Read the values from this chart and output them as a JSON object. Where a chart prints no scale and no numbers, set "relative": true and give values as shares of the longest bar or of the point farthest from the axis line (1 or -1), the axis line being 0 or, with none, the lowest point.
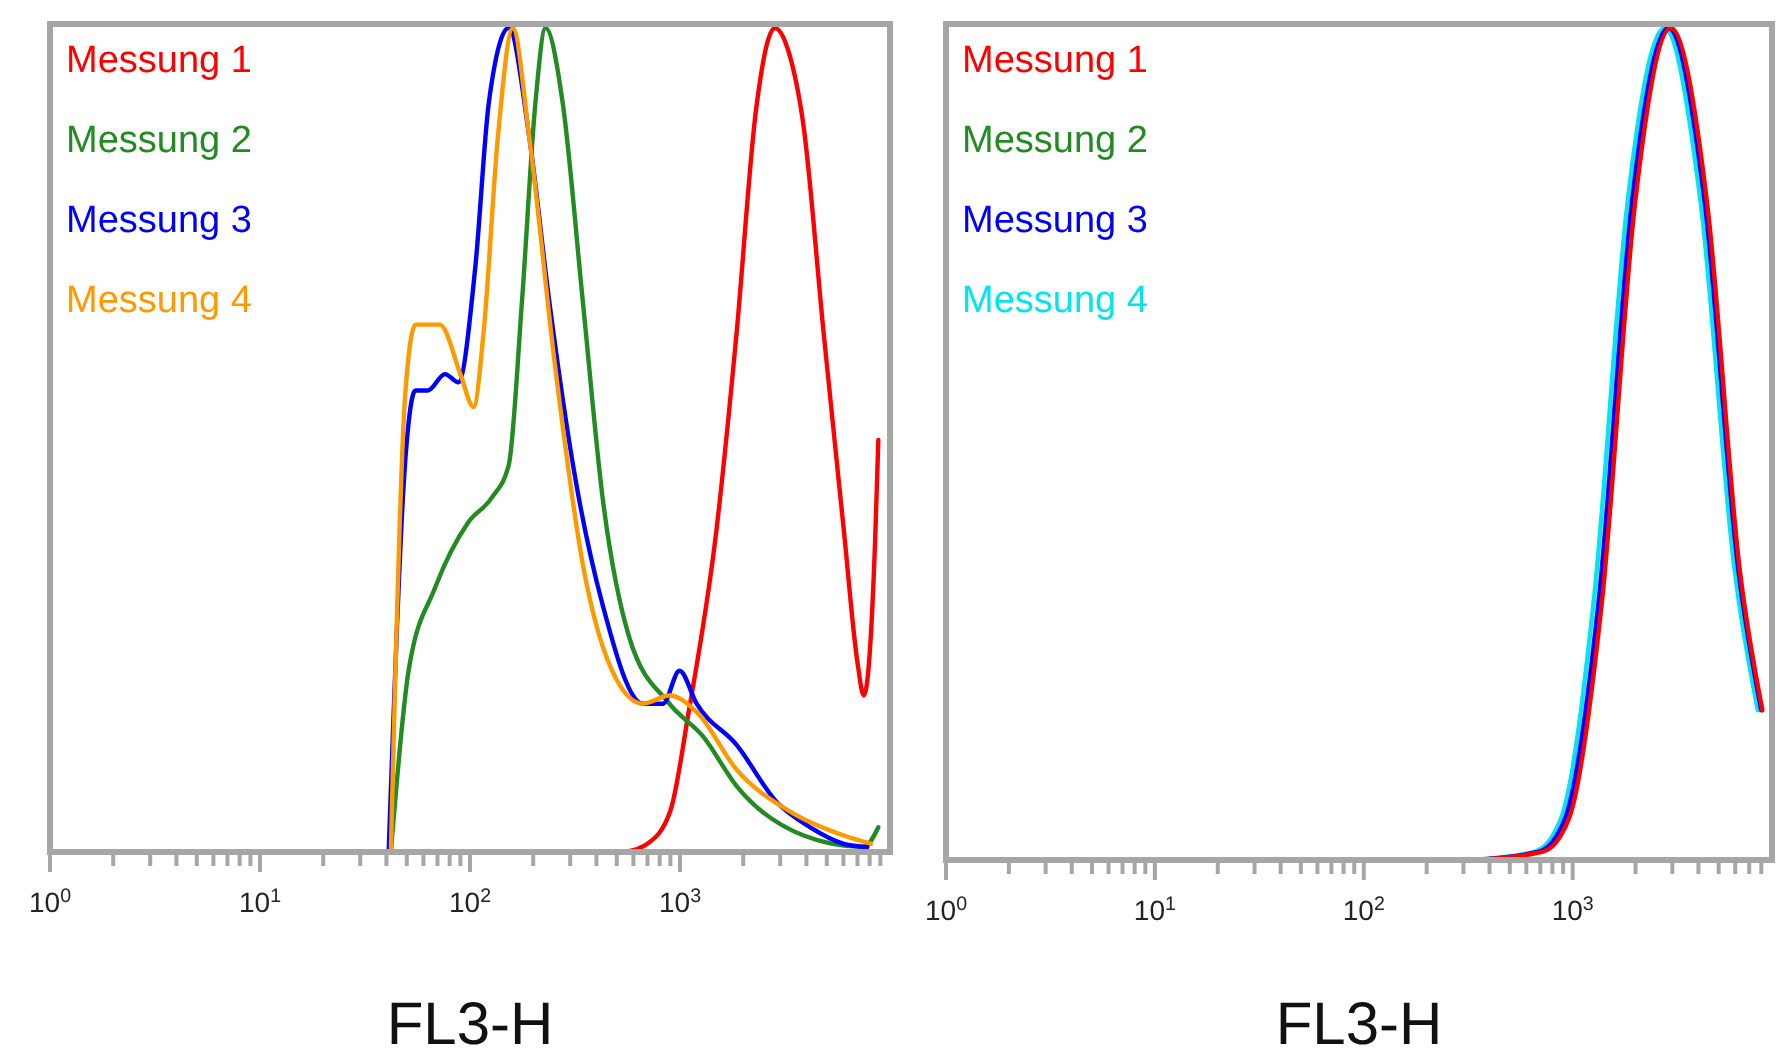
{
  "chart_data": [
    {
      "type": "line",
      "relative": true,
      "log": "x",
      "xlabel": "FL3-H",
      "legend": "top left",
      "xlim": [
        1,
        10000
      ],
      "xticks": [
        {
          "value": 1,
          "label": "10$^{0}$"
        },
        {
          "value": 2,
          "label": null
        },
        {
          "value": 3,
          "label": null
        },
        {
          "value": 4,
          "label": null
        },
        {
          "value": 5,
          "label": null
        },
        {
          "value": 6,
          "label": null
        },
        {
          "value": 7,
          "label": null
        },
        {
          "value": 8,
          "label": null
        },
        {
          "value": 9,
          "label": null
        },
        {
          "value": 10,
          "label": "10$^{1}$"
        },
        {
          "value": 20,
          "label": null
        },
        {
          "value": 30,
          "label": null
        },
        {
          "value": 40,
          "label": null
        },
        {
          "value": 50,
          "label": null
        },
        {
          "value": 60,
          "label": null
        },
        {
          "value": 70,
          "label": null
        },
        {
          "value": 80,
          "label": null
        },
        {
          "value": 90,
          "label": null
        },
        {
          "value": 100,
          "label": "10$^{2}$"
        },
        {
          "value": 200,
          "label": null
        },
        {
          "value": 300,
          "label": null
        },
        {
          "value": 400,
          "label": null
        },
        {
          "value": 500,
          "label": null
        },
        {
          "value": 600,
          "label": null
        },
        {
          "value": 700,
          "label": null
        },
        {
          "value": 800,
          "label": null
        },
        {
          "value": 900,
          "label": null
        },
        {
          "value": 1000,
          "label": "10$^{3}$"
        },
        {
          "value": 2000,
          "label": null
        },
        {
          "value": 3000,
          "label": null
        },
        {
          "value": 4000,
          "label": null
        },
        {
          "value": 5000,
          "label": null
        },
        {
          "value": 6000,
          "label": null
        },
        {
          "value": 7000,
          "label": null
        },
        {
          "value": 8000,
          "label": null
        },
        {
          "value": 9000,
          "label": null
        }
      ],
      "series": [
        {
          "name": "Messung 1",
          "color": "#ff0000",
          "x": [
            550,
            700,
            900,
            1100,
            1490,
            1860,
            2300,
            2830,
            3300,
            3880,
            4830,
            6030,
            7000,
            7500,
            8000,
            8500,
            8800
          ],
          "values": [
            0,
            0.01,
            0.05,
            0.17,
            0.39,
            0.63,
            0.9,
            1,
            0.97,
            0.88,
            0.63,
            0.39,
            0.23,
            0.19,
            0.24,
            0.38,
            0.5
          ]
        },
        {
          "name": "Messung 2",
          "color": "#228b22",
          "x": [
            42,
            51,
            68,
            98,
            127,
            153,
            177,
            205,
            229,
            276,
            344,
            428,
            574,
            890,
            1290,
            1860,
            3880,
            7500,
            8800
          ],
          "values": [
            0,
            0.22,
            0.32,
            0.4,
            0.43,
            0.47,
            0.67,
            0.91,
            1,
            0.91,
            0.67,
            0.43,
            0.26,
            0.18,
            0.14,
            0.08,
            0.02,
            0.006,
            0.03
          ]
        },
        {
          "name": "Messung 3",
          "color": "#0000ff",
          "x": [
            41,
            49,
            55,
            63,
            76,
            88,
            106,
            123,
            153,
            191,
            238,
            319,
            428,
            665,
            830,
            995,
            1200,
            1860,
            2900,
            4170,
            6030,
            7800
          ],
          "values": [
            0,
            0.47,
            0.56,
            0.56,
            0.58,
            0.57,
            0.71,
            0.91,
            1,
            0.87,
            0.67,
            0.45,
            0.3,
            0.18,
            0.18,
            0.22,
            0.18,
            0.13,
            0.06,
            0.03,
            0.01,
            0.006
          ]
        },
        {
          "name": "Messung 4",
          "color": "#ff9900",
          "x": [
            42,
            49,
            55,
            63,
            72,
            90,
            104,
            116,
            136,
            160,
            191,
            254,
            344,
            497,
            665,
            890,
            1200,
            1860,
            3300,
            6030,
            8100
          ],
          "values": [
            0,
            0.55,
            0.64,
            0.64,
            0.64,
            0.58,
            0.54,
            0.63,
            0.87,
            1,
            0.87,
            0.59,
            0.35,
            0.21,
            0.18,
            0.19,
            0.17,
            0.1,
            0.05,
            0.02,
            0.01
          ]
        }
      ]
    },
    {
      "type": "line",
      "relative": true,
      "log": "x",
      "xlabel": "FL3-H",
      "legend": "top left",
      "xlim": [
        1,
        9000
      ],
      "xticks": [
        {
          "value": 1,
          "label": "10$^{0}$"
        },
        {
          "value": 2,
          "label": null
        },
        {
          "value": 3,
          "label": null
        },
        {
          "value": 4,
          "label": null
        },
        {
          "value": 5,
          "label": null
        },
        {
          "value": 6,
          "label": null
        },
        {
          "value": 7,
          "label": null
        },
        {
          "value": 8,
          "label": null
        },
        {
          "value": 9,
          "label": null
        },
        {
          "value": 10,
          "label": "10$^{1}$"
        },
        {
          "value": 20,
          "label": null
        },
        {
          "value": 30,
          "label": null
        },
        {
          "value": 40,
          "label": null
        },
        {
          "value": 50,
          "label": null
        },
        {
          "value": 60,
          "label": null
        },
        {
          "value": 70,
          "label": null
        },
        {
          "value": 80,
          "label": null
        },
        {
          "value": 90,
          "label": null
        },
        {
          "value": 100,
          "label": "10$^{2}$"
        },
        {
          "value": 200,
          "label": null
        },
        {
          "value": 300,
          "label": null
        },
        {
          "value": 400,
          "label": null
        },
        {
          "value": 500,
          "label": null
        },
        {
          "value": 600,
          "label": null
        },
        {
          "value": 700,
          "label": null
        },
        {
          "value": 800,
          "label": null
        },
        {
          "value": 900,
          "label": null
        },
        {
          "value": 1000,
          "label": "10$^{3}$"
        },
        {
          "value": 2000,
          "label": null
        },
        {
          "value": 3000,
          "label": null
        },
        {
          "value": 4000,
          "label": null
        },
        {
          "value": 5000,
          "label": null
        },
        {
          "value": 6000,
          "label": null
        },
        {
          "value": 7000,
          "label": null
        },
        {
          "value": 8000,
          "label": null
        }
      ],
      "series": [
        {
          "name": "Messung 4",
          "color": "#00e5ee",
          "x": [
            320,
            660,
            880,
            1260,
            1830,
            2750,
            4100,
            5950,
            7700
          ],
          "values": [
            0,
            0.01,
            0.05,
            0.31,
            0.79,
            1,
            0.79,
            0.35,
            0.18
          ]
        },
        {
          "name": "Messung 2",
          "color": "#228b22"
        },
        {
          "name": "Messung 3",
          "color": "#0000ff",
          "x": [
            330,
            690,
            920,
            1330,
            1920,
            2870,
            4290,
            6200,
            8000
          ],
          "values": [
            0,
            0.01,
            0.05,
            0.31,
            0.79,
            1,
            0.79,
            0.35,
            0.18
          ]
        },
        {
          "name": "Messung 1",
          "color": "#ff0000",
          "x": [
            345,
            720,
            960,
            1380,
            1990,
            2950,
            4400,
            6300,
            8100
          ],
          "values": [
            0,
            0.01,
            0.05,
            0.31,
            0.79,
            1,
            0.79,
            0.35,
            0.18
          ]
        }
      ]
    }
  ]
}
